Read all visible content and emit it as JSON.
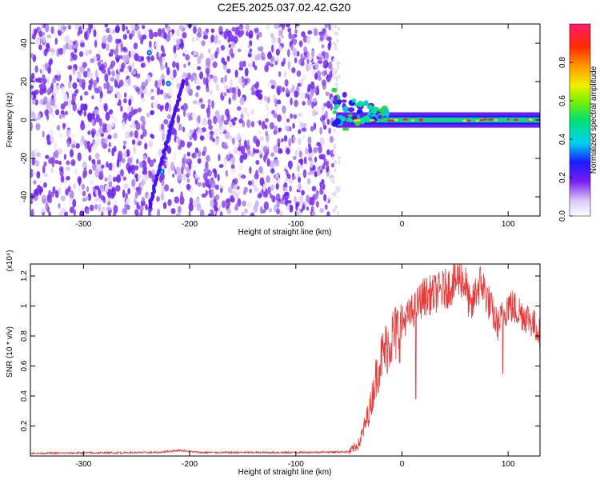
{
  "title": "C2E5.2025.037.02.42.G20",
  "chart_data": [
    {
      "type": "heatmap",
      "xlabel": "Height of straight line (km)",
      "ylabel": "Frequency (Hz)",
      "xlim": [
        -350,
        130
      ],
      "ylim": [
        -50,
        50
      ],
      "xticks": [
        -300,
        -200,
        -100,
        0,
        100
      ],
      "yticks": [
        -40,
        -20,
        0,
        20,
        40
      ],
      "colorbar": {
        "label": "Normalized spectral amplitude",
        "range": [
          0,
          1
        ],
        "ticks": [
          "0.0",
          "0.2",
          "0.4",
          "0.6",
          "0.8"
        ]
      },
      "features": {
        "noise_region_x": [
          -350,
          -65
        ],
        "signal_onset_x": -65,
        "signal_frequency_hz": 0,
        "streak_x": [
          -238,
          -206
        ],
        "streak_freq_hz": [
          -45,
          20
        ]
      },
      "grid": false
    },
    {
      "type": "line",
      "xlabel": "Height of straight line (km)",
      "ylabel": "SNR (10 * v/v)",
      "multiplier": "(x10⁴)",
      "xlim": [
        -350,
        130
      ],
      "ylim": [
        0,
        1.28
      ],
      "xticks": [
        -300,
        -200,
        -100,
        0,
        100
      ],
      "yticks": [
        0.2,
        0.4,
        0.6,
        0.8,
        1.0,
        1.2
      ],
      "series_color": "#e83a3a",
      "profile": {
        "x": [
          -350,
          -230,
          -210,
          -190,
          -100,
          -50,
          -40,
          -30,
          -25,
          -20,
          -10,
          0,
          10,
          20,
          30,
          40,
          50,
          55,
          60,
          65,
          70,
          75,
          80,
          90,
          100,
          110,
          120,
          130
        ],
        "y": [
          0.02,
          0.025,
          0.04,
          0.025,
          0.025,
          0.03,
          0.1,
          0.35,
          0.55,
          0.7,
          0.85,
          0.92,
          1.0,
          1.1,
          1.12,
          1.15,
          1.2,
          1.25,
          1.18,
          1.0,
          1.15,
          1.2,
          1.1,
          0.9,
          1.05,
          1.0,
          0.95,
          0.85
        ]
      },
      "dips": [
        {
          "x": 13,
          "y": 0.38
        },
        {
          "x": 95,
          "y": 0.55
        }
      ],
      "grid": false
    }
  ]
}
